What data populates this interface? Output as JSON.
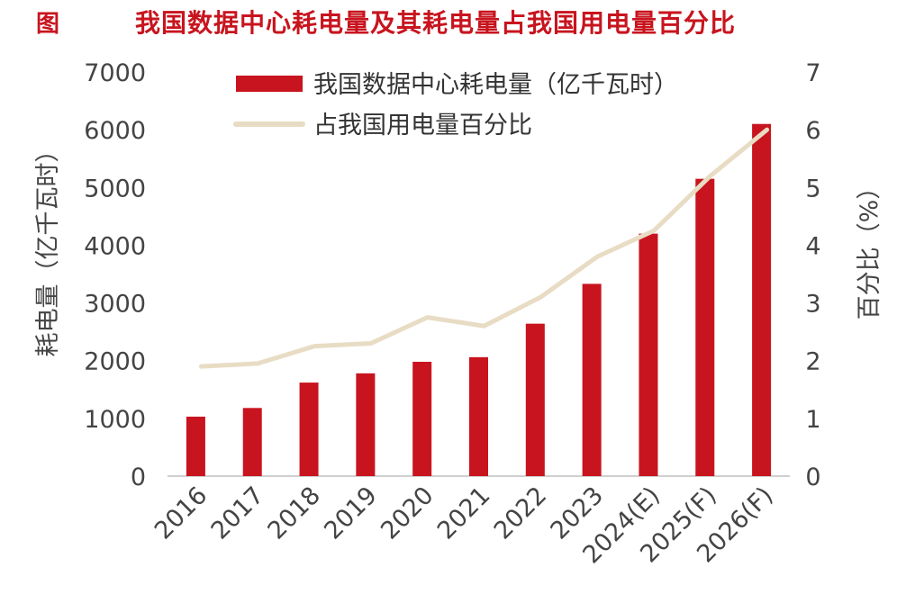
{
  "header": {
    "label": "图",
    "title": "我国数据中心耗电量及其耗电量占我国用电量百分比"
  },
  "chart_data": {
    "type": "bar",
    "categories": [
      "2016",
      "2017",
      "2018",
      "2019",
      "2020",
      "2021",
      "2022",
      "2023",
      "2024(E)",
      "2025(F)",
      "2026(F)"
    ],
    "series": [
      {
        "name": "我国数据中心耗电量（亿千瓦时）",
        "type": "bar",
        "axis": "left",
        "color": "#c8141e",
        "values": [
          1030,
          1180,
          1620,
          1780,
          1980,
          2060,
          2640,
          3330,
          4200,
          5150,
          6100
        ]
      },
      {
        "name": "占我国用电量百分比",
        "type": "line",
        "axis": "right",
        "color": "#e8dcc4",
        "values": [
          1.9,
          1.95,
          2.25,
          2.3,
          2.75,
          2.6,
          3.1,
          3.8,
          4.25,
          5.2,
          6.0
        ]
      }
    ],
    "ylabel_left": "耗电量（亿千瓦时）",
    "ylabel_right": "百分比（%）",
    "ylim_left": [
      0,
      7000
    ],
    "ylim_right": [
      0,
      7
    ],
    "yticks_left": [
      "0",
      "1000",
      "2000",
      "3000",
      "4000",
      "5000",
      "6000",
      "7000"
    ],
    "yticks_right": [
      "0",
      "1",
      "2",
      "3",
      "4",
      "5",
      "6",
      "7"
    ],
    "grid": false,
    "legend_position": "top"
  }
}
